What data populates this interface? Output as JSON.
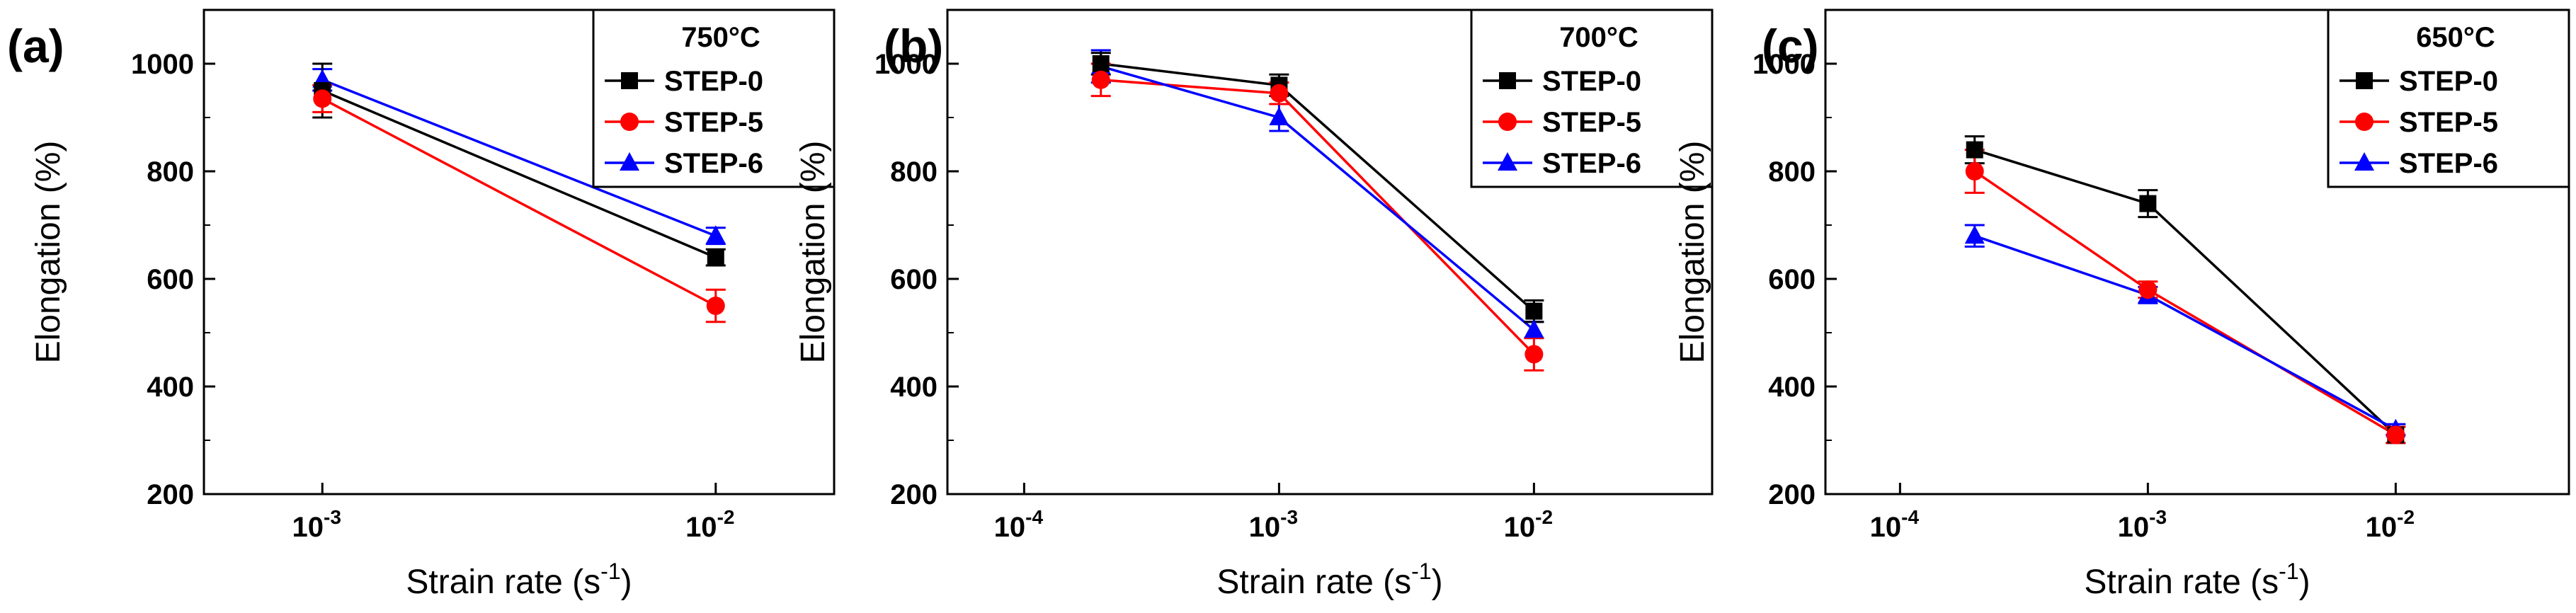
{
  "chart_data": [
    {
      "panel": "(a)",
      "type": "line",
      "temperature": "750°C",
      "xlabel": "Strain rate (s",
      "xlabel_exp": "-1",
      "xlabel_close": ")",
      "ylabel": "Elongation (%)",
      "xscale": "log",
      "xlim": [
        0.0005,
        0.02
      ],
      "ylim": [
        200,
        1100
      ],
      "yticks": [
        200,
        400,
        600,
        800,
        1000
      ],
      "xticks": [
        {
          "value": 0.001,
          "base": "10",
          "exp": "-3"
        },
        {
          "value": 0.01,
          "base": "10",
          "exp": "-2"
        }
      ],
      "legend_position": "top-right",
      "series": [
        {
          "name": "STEP-0",
          "color": "#000000",
          "marker": "square",
          "x": [
            0.001,
            0.01
          ],
          "values": [
            950,
            640
          ],
          "errors": [
            50,
            15
          ]
        },
        {
          "name": "STEP-5",
          "color": "#ff0000",
          "marker": "circle",
          "x": [
            0.001,
            0.01
          ],
          "values": [
            935,
            550
          ],
          "errors": [
            25,
            30
          ]
        },
        {
          "name": "STEP-6",
          "color": "#0000ff",
          "marker": "triangle",
          "x": [
            0.001,
            0.01
          ],
          "values": [
            970,
            680
          ],
          "errors": [
            20,
            15
          ]
        }
      ]
    },
    {
      "panel": "(b)",
      "type": "line",
      "temperature": "700°C",
      "xlabel": "Strain rate (s",
      "xlabel_exp": "-1",
      "xlabel_close": ")",
      "ylabel": "Elongation (%)",
      "xscale": "log",
      "xlim": [
        5e-05,
        0.05
      ],
      "ylim": [
        200,
        1100
      ],
      "yticks": [
        200,
        400,
        600,
        800,
        1000
      ],
      "xticks": [
        {
          "value": 0.0001,
          "base": "10",
          "exp": "-4"
        },
        {
          "value": 0.001,
          "base": "10",
          "exp": "-3"
        },
        {
          "value": 0.01,
          "base": "10",
          "exp": "-2"
        }
      ],
      "legend_position": "top-right",
      "series": [
        {
          "name": "STEP-0",
          "color": "#000000",
          "marker": "square",
          "x": [
            0.0002,
            0.001,
            0.01
          ],
          "values": [
            1000,
            960,
            540
          ],
          "errors": [
            20,
            20,
            20
          ]
        },
        {
          "name": "STEP-5",
          "color": "#ff0000",
          "marker": "circle",
          "x": [
            0.0002,
            0.001,
            0.01
          ],
          "values": [
            970,
            945,
            460
          ],
          "errors": [
            30,
            20,
            30
          ]
        },
        {
          "name": "STEP-6",
          "color": "#0000ff",
          "marker": "triangle",
          "x": [
            0.0002,
            0.001,
            0.01
          ],
          "values": [
            995,
            900,
            505
          ],
          "errors": [
            30,
            25,
            15
          ]
        }
      ]
    },
    {
      "panel": "(c)",
      "type": "line",
      "temperature": "650°C",
      "xlabel": "Strain rate (s",
      "xlabel_exp": "-1",
      "xlabel_close": ")",
      "ylabel": "Elongation (%)",
      "xscale": "log",
      "xlim": [
        5e-05,
        0.05
      ],
      "ylim": [
        200,
        1100
      ],
      "yticks": [
        200,
        400,
        600,
        800,
        1000
      ],
      "xticks": [
        {
          "value": 0.0001,
          "base": "10",
          "exp": "-4"
        },
        {
          "value": 0.001,
          "base": "10",
          "exp": "-3"
        },
        {
          "value": 0.01,
          "base": "10",
          "exp": "-2"
        }
      ],
      "legend_position": "top-right",
      "series": [
        {
          "name": "STEP-0",
          "color": "#000000",
          "marker": "square",
          "x": [
            0.0002,
            0.001,
            0.01
          ],
          "values": [
            840,
            740,
            310
          ],
          "errors": [
            25,
            25,
            15
          ]
        },
        {
          "name": "STEP-5",
          "color": "#ff0000",
          "marker": "circle",
          "x": [
            0.0002,
            0.001,
            0.01
          ],
          "values": [
            800,
            580,
            310
          ],
          "errors": [
            40,
            15,
            15
          ]
        },
        {
          "name": "STEP-6",
          "color": "#0000ff",
          "marker": "triangle",
          "x": [
            0.0002,
            0.001,
            0.01
          ],
          "values": [
            680,
            570,
            320
          ],
          "errors": [
            20,
            15,
            10
          ]
        }
      ]
    }
  ]
}
